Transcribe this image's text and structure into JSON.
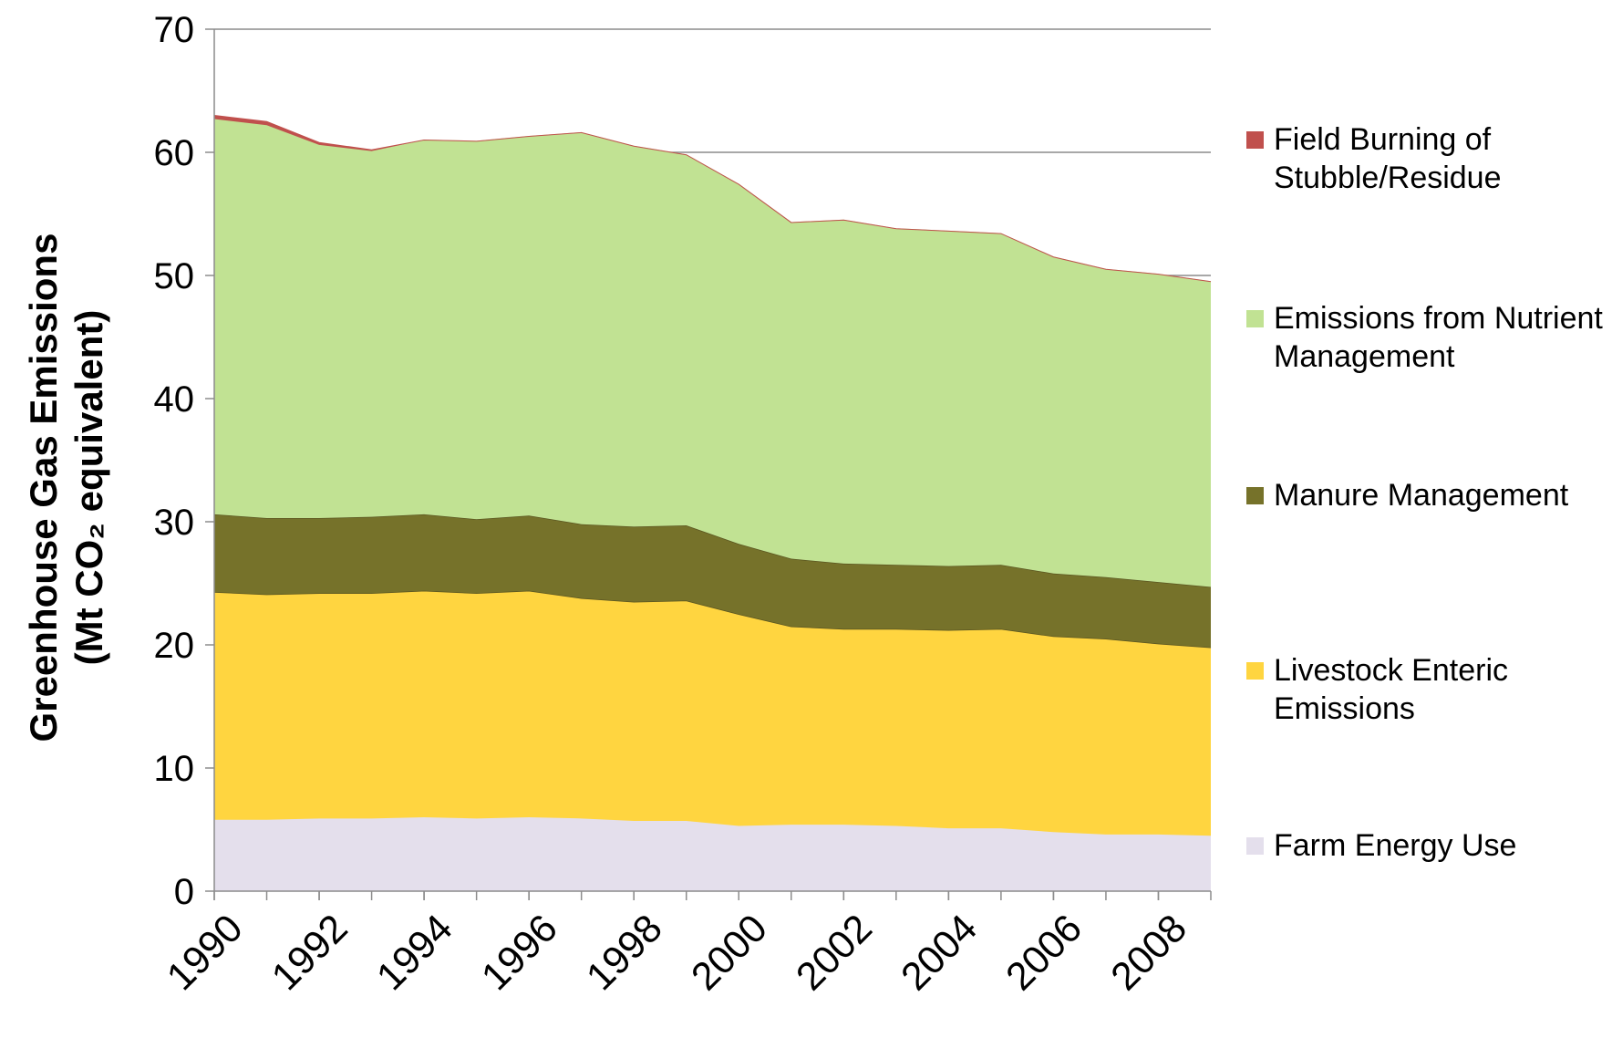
{
  "chart_data": {
    "type": "stacked_area",
    "y_label": [
      "Greenhouse Gas Emissions",
      "(Mt CO₂ equivalent)"
    ],
    "x": [
      1990,
      1991,
      1992,
      1993,
      1994,
      1995,
      1996,
      1997,
      1998,
      1999,
      2000,
      2001,
      2002,
      2003,
      2004,
      2005,
      2006,
      2007,
      2008,
      2009
    ],
    "xlim": [
      1990,
      2009
    ],
    "xticks": [
      1990,
      1992,
      1994,
      1996,
      1998,
      2000,
      2002,
      2004,
      2006,
      2008
    ],
    "ylim": [
      0,
      70
    ],
    "yticks": [
      0,
      10,
      20,
      30,
      40,
      50,
      60,
      70
    ],
    "grid": true,
    "legend": "right",
    "series": [
      {
        "name": "Farm Energy Use",
        "color": "#e4dfec",
        "values": [
          5.8,
          5.8,
          5.9,
          5.9,
          6.0,
          5.9,
          6.0,
          5.9,
          5.7,
          5.7,
          5.3,
          5.4,
          5.4,
          5.3,
          5.1,
          5.1,
          4.8,
          4.6,
          4.6,
          4.5
        ]
      },
      {
        "name": "Livestock Enteric Emissions",
        "color": "#ffd540",
        "values": [
          18.5,
          18.3,
          18.3,
          18.3,
          18.4,
          18.3,
          18.4,
          17.9,
          17.8,
          17.9,
          17.2,
          16.1,
          15.9,
          16.0,
          16.1,
          16.2,
          15.9,
          15.9,
          15.5,
          15.3
        ]
      },
      {
        "name": "Manure Management",
        "color": "#76722a",
        "values": [
          6.3,
          6.2,
          6.1,
          6.2,
          6.2,
          6.0,
          6.1,
          6.0,
          6.1,
          6.1,
          5.7,
          5.5,
          5.3,
          5.2,
          5.2,
          5.2,
          5.1,
          5.0,
          5.0,
          4.9
        ]
      },
      {
        "name": "Emissions from Nutrient Management",
        "color": "#c1e293",
        "values": [
          32.1,
          31.9,
          30.3,
          29.7,
          30.4,
          30.7,
          30.8,
          31.8,
          30.9,
          30.1,
          29.2,
          27.3,
          27.9,
          27.3,
          27.2,
          26.9,
          25.7,
          25.0,
          25.0,
          24.8
        ]
      },
      {
        "name": "Field Burning of Stubble/Residue",
        "color": "#c0504d",
        "values": [
          0.3,
          0.3,
          0.2,
          0.1,
          0,
          0,
          0,
          0,
          0,
          0,
          0,
          0,
          0,
          0,
          0,
          0,
          0,
          0,
          0,
          0
        ]
      }
    ]
  }
}
